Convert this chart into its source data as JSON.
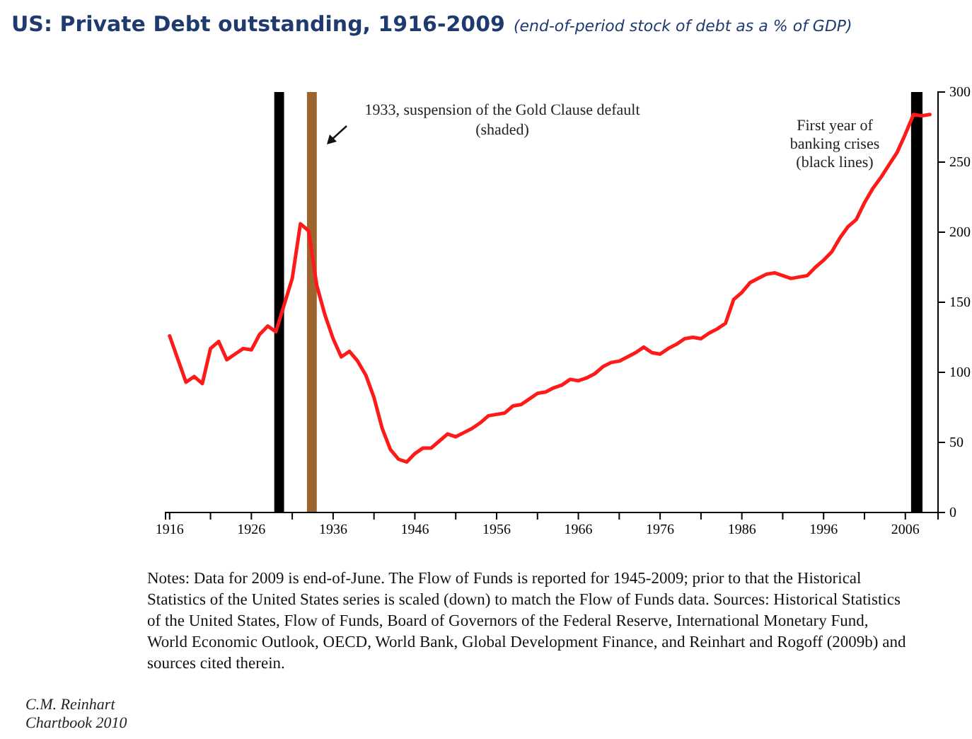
{
  "chart_data": {
    "type": "line",
    "title": "US: Private Debt outstanding, 1916-2009",
    "subtitle": "(end-of-period stock of debt as a % of GDP)",
    "x": [
      1916,
      1918,
      1919,
      1920,
      1921,
      1922,
      1923,
      1924,
      1925,
      1926,
      1927,
      1928,
      1929,
      1930,
      1931,
      1932,
      1933,
      1934,
      1935,
      1936,
      1937,
      1938,
      1939,
      1940,
      1941,
      1942,
      1943,
      1944,
      1945,
      1946,
      1947,
      1948,
      1949,
      1950,
      1951,
      1952,
      1953,
      1954,
      1955,
      1956,
      1957,
      1958,
      1959,
      1960,
      1961,
      1962,
      1963,
      1964,
      1965,
      1966,
      1967,
      1968,
      1969,
      1970,
      1971,
      1972,
      1973,
      1974,
      1975,
      1976,
      1977,
      1978,
      1979,
      1980,
      1981,
      1982,
      1983,
      1984,
      1985,
      1986,
      1987,
      1988,
      1989,
      1990,
      1991,
      1992,
      1993,
      1994,
      1995,
      1996,
      1997,
      1998,
      1999,
      2000,
      2001,
      2002,
      2003,
      2004,
      2005,
      2006,
      2007,
      2008,
      2009
    ],
    "series": [
      {
        "color": "#ff1a1a",
        "values": [
          126,
          93,
          97,
          92,
          117,
          122,
          109,
          113,
          117,
          116,
          127,
          133,
          129,
          148,
          167,
          206,
          201,
          162,
          141,
          124,
          111,
          115,
          108,
          98,
          82,
          60,
          45,
          38,
          36,
          42,
          46,
          46,
          51,
          56,
          54,
          57,
          60,
          64,
          69,
          70,
          71,
          76,
          77,
          81,
          85,
          86,
          89,
          91,
          95,
          94,
          96,
          99,
          104,
          107,
          108,
          111,
          114,
          118,
          114,
          113,
          117,
          120,
          124,
          125,
          124,
          128,
          131,
          135,
          152,
          157,
          164,
          167,
          170,
          171,
          169,
          167,
          168,
          169,
          175,
          180,
          186,
          196,
          204,
          209,
          221,
          231,
          239,
          248,
          257,
          270,
          284,
          283,
          284
        ]
      }
    ],
    "xlim": [
      1915.5,
      2010
    ],
    "xticks": [
      1916,
      {
        "value": 1921,
        "label": null
      },
      1926,
      {
        "value": 1931,
        "label": null
      },
      1936,
      {
        "value": 1941,
        "label": null
      },
      1946,
      {
        "value": 1951,
        "label": null
      },
      1956,
      {
        "value": 1961,
        "label": null
      },
      1966,
      {
        "value": 1971,
        "label": null
      },
      1976,
      {
        "value": 1981,
        "label": null
      },
      1986,
      {
        "value": 1991,
        "label": null
      },
      1996,
      {
        "value": 2001,
        "label": null
      },
      2006
    ],
    "ylim": [
      0,
      300
    ],
    "yticks": [
      0,
      50,
      100,
      150,
      200,
      250,
      300
    ],
    "bands": [
      {
        "axis": "x",
        "from": 1928.8,
        "to": 1930,
        "color": "#000000"
      },
      {
        "axis": "x",
        "from": 1932.8,
        "to": 1934,
        "color": "#9c6530"
      },
      {
        "axis": "x",
        "from": 2006.7,
        "to": 2008.1,
        "color": "#000000"
      }
    ],
    "annotations": [
      "1933, suspension of the Gold Clause default (shaded)",
      "First year of banking crises (black lines)",
      "Notes:  Data for 2009 is end-of-June.  The Flow of Funds is reported for 1945-2009; prior to that the Historical Statistics of the United States series is scaled (down) to match the Flow of Funds data. Sources: Historical Statistics of the United States, Flow of Funds, Board of Governors of the Federal Reserve, International Monetary Fund, World Economic Outlook, OECD, World Bank, Global Development Finance, and  Reinhart and Rogoff (2009b) and sources cited therein.",
      "C.M. Reinhart Chartbook 2010"
    ],
    "grid": false,
    "line_style": "solid",
    "marker": "none"
  }
}
